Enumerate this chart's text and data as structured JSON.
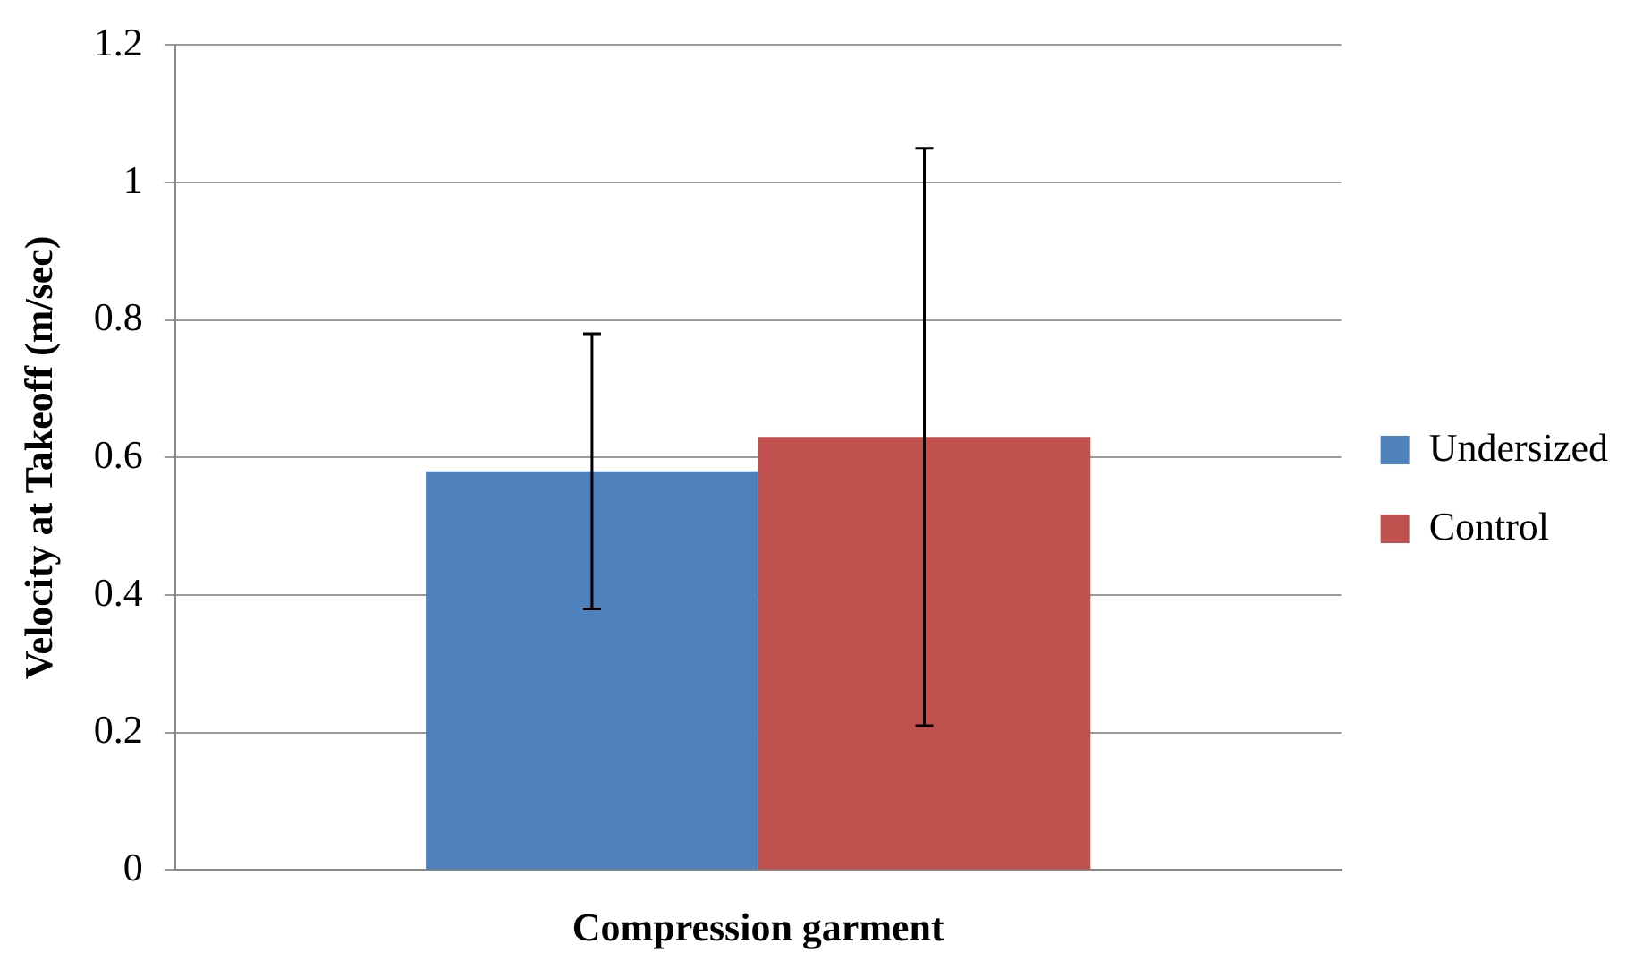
{
  "chart_data": {
    "type": "bar",
    "xlabel": "Compression garment",
    "ylabel": "Velocity at Takeoff (m/sec)",
    "categories": [
      null
    ],
    "series": [
      {
        "name": "Undersized",
        "color": "#4f81bd",
        "values": [
          0.58
        ],
        "errors": [
          0.2
        ]
      },
      {
        "name": "Control",
        "color": "#c0504d",
        "values": [
          0.63
        ],
        "errors": [
          0.42
        ]
      }
    ],
    "ylim": [
      0,
      1.2
    ],
    "yticks": [
      0,
      0.2,
      0.4,
      0.6,
      0.8,
      1,
      1.2
    ],
    "grid": "y",
    "legend": "right"
  }
}
